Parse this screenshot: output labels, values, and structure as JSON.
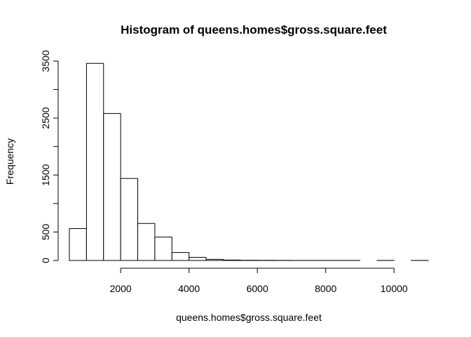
{
  "chart_data": {
    "type": "bar",
    "title": "Histogram of queens.homes$gross.square.feet",
    "xlabel": "queens.homes$gross.square.feet",
    "ylabel": "Frequency",
    "bin_width": 500,
    "bins": [
      {
        "x0": 500,
        "x1": 1000,
        "count": 560
      },
      {
        "x0": 1000,
        "x1": 1500,
        "count": 3460
      },
      {
        "x0": 1500,
        "x1": 2000,
        "count": 2580
      },
      {
        "x0": 2000,
        "x1": 2500,
        "count": 1440
      },
      {
        "x0": 2500,
        "x1": 3000,
        "count": 650
      },
      {
        "x0": 3000,
        "x1": 3500,
        "count": 410
      },
      {
        "x0": 3500,
        "x1": 4000,
        "count": 140
      },
      {
        "x0": 4000,
        "x1": 4500,
        "count": 55
      },
      {
        "x0": 4500,
        "x1": 5000,
        "count": 20
      },
      {
        "x0": 5000,
        "x1": 5500,
        "count": 8
      },
      {
        "x0": 5500,
        "x1": 6000,
        "count": 4
      },
      {
        "x0": 6000,
        "x1": 6500,
        "count": 3
      },
      {
        "x0": 6500,
        "x1": 7000,
        "count": 2
      },
      {
        "x0": 7000,
        "x1": 7500,
        "count": 1
      },
      {
        "x0": 7500,
        "x1": 8000,
        "count": 1
      },
      {
        "x0": 8000,
        "x1": 8500,
        "count": 1
      },
      {
        "x0": 8500,
        "x1": 9000,
        "count": 1
      },
      {
        "x0": 9000,
        "x1": 9500,
        "count": 0
      },
      {
        "x0": 9500,
        "x1": 10000,
        "count": 1
      },
      {
        "x0": 10000,
        "x1": 10500,
        "count": 0
      },
      {
        "x0": 10500,
        "x1": 11000,
        "count": 1
      }
    ],
    "xticks": [
      2000,
      4000,
      6000,
      8000,
      10000
    ],
    "xtick_labels": [
      "2000",
      "4000",
      "6000",
      "8000",
      "10000"
    ],
    "yticks": [
      0,
      500,
      1000,
      1500,
      2000,
      2500,
      3000,
      3500
    ],
    "ytick_labels": [
      "0",
      "500",
      "",
      "1500",
      "",
      "2500",
      "",
      "3500"
    ],
    "xlim": [
      500,
      11000
    ],
    "ylim": [
      0,
      3500
    ],
    "grid": false,
    "legend": "none"
  }
}
